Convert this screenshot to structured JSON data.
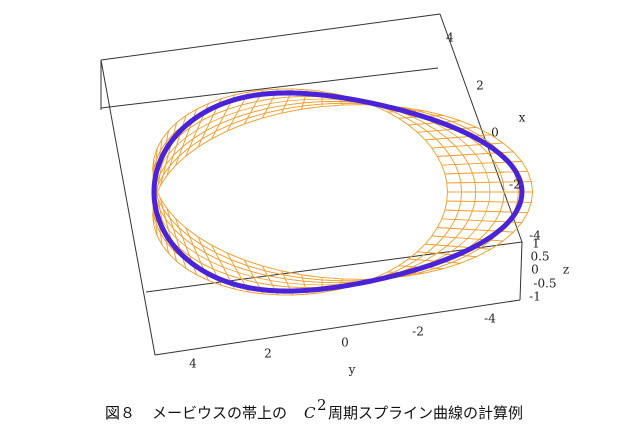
{
  "figure": {
    "axes": {
      "x": {
        "label": "x",
        "ticks": [
          4,
          2,
          0,
          -2,
          -4
        ]
      },
      "y": {
        "label": "y",
        "ticks": [
          4,
          2,
          0,
          -2,
          -4
        ]
      },
      "z": {
        "label": "z",
        "ticks": [
          1,
          0.5,
          0,
          -0.5,
          -1
        ]
      }
    },
    "caption": {
      "number": "図８",
      "text_before": "メービウスの帯上の",
      "symbol": "C",
      "superscript": "2",
      "text_after": "周期スプライン曲線の計算例"
    }
  }
}
